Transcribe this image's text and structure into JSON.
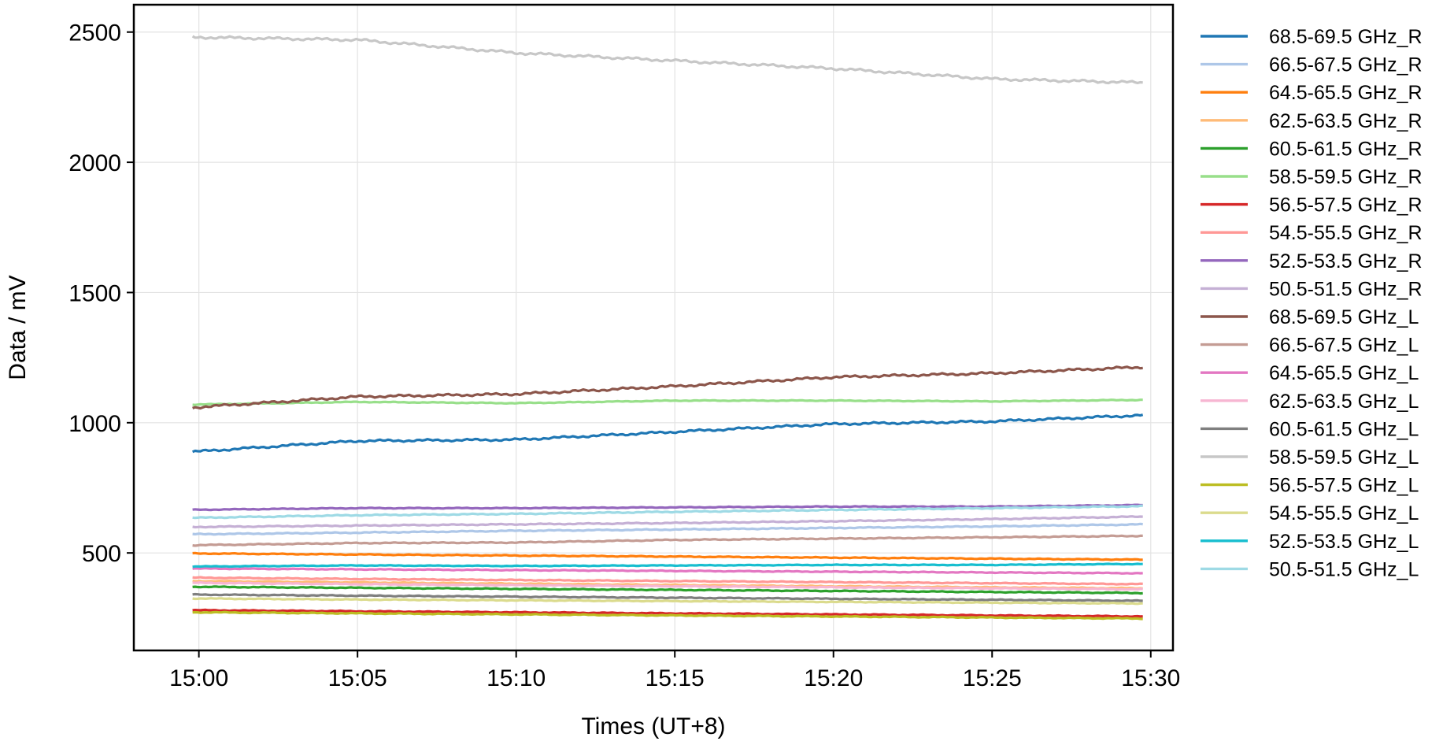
{
  "chart_data": {
    "type": "line",
    "title": "",
    "xlabel": "Times (UT+8)",
    "ylabel": "Data / mV",
    "xlim": [
      "14:58",
      "15:31"
    ],
    "ylim": [
      200,
      2600
    ],
    "x_tick_labels": [
      "15:00",
      "15:05",
      "15:10",
      "15:15",
      "15:20",
      "15:25",
      "15:30"
    ],
    "y_tick_labels": [
      "500",
      "1000",
      "1500",
      "2000",
      "2500"
    ],
    "grid": true,
    "legend_position": "outside-right",
    "x": [
      "15:00",
      "15:05",
      "15:10",
      "15:15",
      "15:20",
      "15:25",
      "15:30"
    ],
    "series": [
      {
        "name": "68.5-69.5 GHz_R",
        "color": "#1f77b4",
        "values": [
          890,
          930,
          935,
          965,
          995,
          1005,
          1030
        ]
      },
      {
        "name": "66.5-67.5 GHz_R",
        "color": "#aec7e8",
        "values": [
          572,
          578,
          585,
          590,
          596,
          602,
          610
        ]
      },
      {
        "name": "64.5-65.5 GHz_R",
        "color": "#ff7f0e",
        "values": [
          498,
          494,
          490,
          486,
          482,
          478,
          474
        ]
      },
      {
        "name": "62.5-63.5 GHz_R",
        "color": "#ffbb78",
        "values": [
          392,
          387,
          382,
          377,
          372,
          368,
          364
        ]
      },
      {
        "name": "60.5-61.5 GHz_R",
        "color": "#2ca02c",
        "values": [
          370,
          366,
          362,
          358,
          354,
          350,
          346
        ]
      },
      {
        "name": "58.5-59.5 GHz_R",
        "color": "#98df8a",
        "values": [
          1070,
          1080,
          1075,
          1085,
          1085,
          1082,
          1088
        ]
      },
      {
        "name": "56.5-57.5 GHz_R",
        "color": "#d62728",
        "values": [
          280,
          276,
          272,
          268,
          264,
          260,
          256
        ]
      },
      {
        "name": "54.5-55.5 GHz_R",
        "color": "#ff9896",
        "values": [
          405,
          400,
          396,
          392,
          388,
          384,
          380
        ]
      },
      {
        "name": "52.5-53.5 GHz_R",
        "color": "#9467bd",
        "values": [
          666,
          672,
          672,
          675,
          678,
          678,
          684
        ]
      },
      {
        "name": "50.5-51.5 GHz_R",
        "color": "#c5b0d5",
        "values": [
          600,
          605,
          610,
          615,
          622,
          630,
          640
        ]
      },
      {
        "name": "68.5-69.5 GHz_L",
        "color": "#8c564b",
        "values": [
          1060,
          1100,
          1110,
          1140,
          1175,
          1190,
          1215
        ]
      },
      {
        "name": "66.5-67.5 GHz_L",
        "color": "#c49c94",
        "values": [
          530,
          538,
          540,
          550,
          555,
          560,
          566
        ]
      },
      {
        "name": "64.5-65.5 GHz_L",
        "color": "#e377c2",
        "values": [
          440,
          437,
          434,
          431,
          428,
          425,
          422
        ]
      },
      {
        "name": "62.5-63.5 GHz_L",
        "color": "#f7b6d2",
        "values": [
          385,
          380,
          376,
          372,
          368,
          364,
          360
        ]
      },
      {
        "name": "60.5-61.5 GHz_L",
        "color": "#7f7f7f",
        "values": [
          340,
          336,
          332,
          328,
          324,
          320,
          316
        ]
      },
      {
        "name": "58.5-59.5 GHz_L",
        "color": "#c7c7c7",
        "values": [
          2480,
          2470,
          2420,
          2390,
          2360,
          2320,
          2305
        ]
      },
      {
        "name": "56.5-57.5 GHz_L",
        "color": "#bcbd22",
        "values": [
          272,
          268,
          264,
          260,
          256,
          252,
          248
        ]
      },
      {
        "name": "54.5-55.5 GHz_L",
        "color": "#dbdb8d",
        "values": [
          325,
          321,
          318,
          315,
          312,
          309,
          306
        ]
      },
      {
        "name": "52.5-53.5 GHz_L",
        "color": "#17becf",
        "values": [
          448,
          452,
          450,
          452,
          454,
          454,
          458
        ]
      },
      {
        "name": "50.5-51.5 GHz_L",
        "color": "#9edae5",
        "values": [
          635,
          645,
          650,
          658,
          665,
          672,
          680
        ]
      }
    ]
  }
}
